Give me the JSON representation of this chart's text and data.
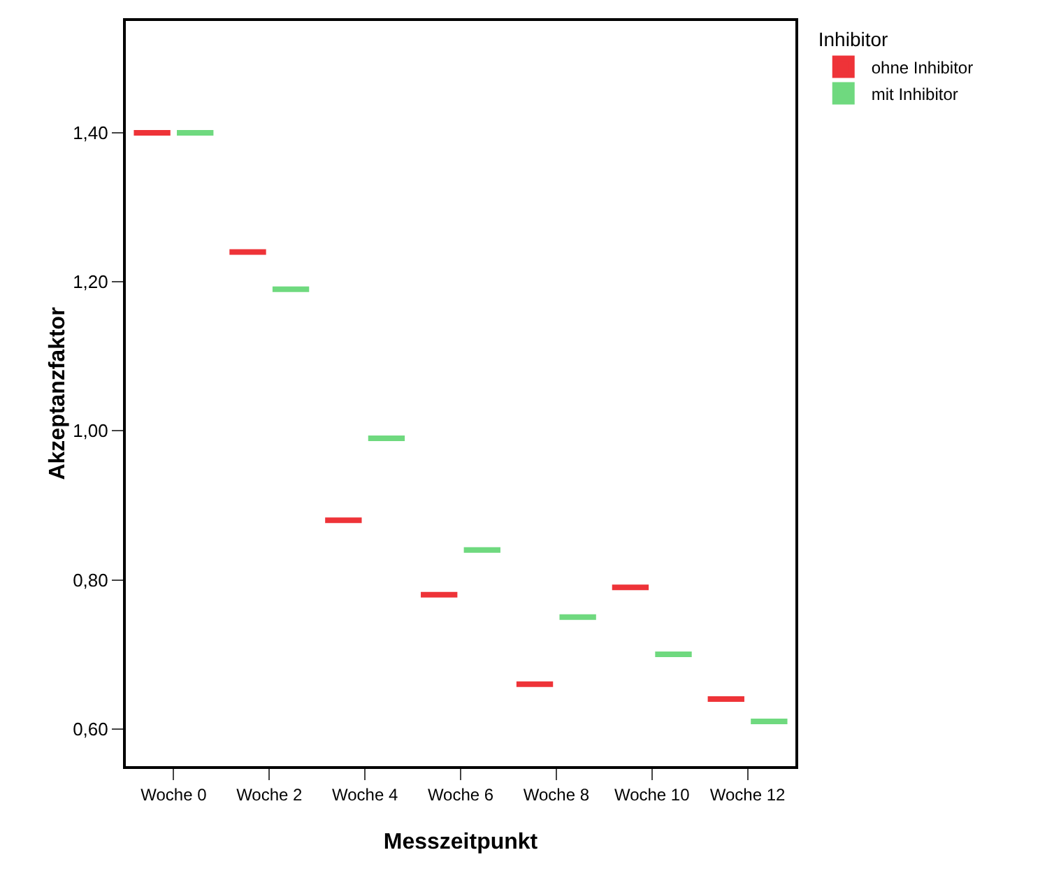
{
  "chart_data": {
    "type": "box",
    "xlabel": "Messzeitpunkt",
    "ylabel": "Akzeptanzfaktor",
    "legend_title": "Inhibitor",
    "categories": [
      "Woche 0",
      "Woche 2",
      "Woche 4",
      "Woche 6",
      "Woche 8",
      "Woche 10",
      "Woche 12"
    ],
    "ylim": [
      0.55,
      1.55
    ],
    "yticks": [
      {
        "value": 0.6,
        "label": "0,60"
      },
      {
        "value": 0.8,
        "label": "0,80"
      },
      {
        "value": 1.0,
        "label": "1,00"
      },
      {
        "value": 1.2,
        "label": "1,20"
      },
      {
        "value": 1.4,
        "label": "1,40"
      }
    ],
    "grid": false,
    "legend": "top right",
    "series": [
      {
        "name": "ohne Inhibitor",
        "color": "#ee3338",
        "boxes": [
          {
            "low": 1.4,
            "q1": 1.4,
            "median": 1.4,
            "q3": 1.4,
            "high": 1.4
          },
          {
            "low": 1.24,
            "q1": 1.24,
            "median": 1.24,
            "q3": 1.24,
            "high": 1.24
          },
          {
            "low": 0.88,
            "q1": 0.88,
            "median": 0.88,
            "q3": 0.88,
            "high": 0.88
          },
          {
            "low": 0.78,
            "q1": 0.78,
            "median": 0.78,
            "q3": 0.78,
            "high": 0.78
          },
          {
            "low": 0.66,
            "q1": 0.66,
            "median": 0.66,
            "q3": 0.66,
            "high": 0.66
          },
          {
            "low": 0.79,
            "q1": 0.79,
            "median": 0.79,
            "q3": 0.79,
            "high": 0.79
          },
          {
            "low": 0.64,
            "q1": 0.64,
            "median": 0.64,
            "q3": 0.64,
            "high": 0.64
          }
        ]
      },
      {
        "name": "mit Inhibitor",
        "color": "#6fd97f",
        "boxes": [
          {
            "low": 1.4,
            "q1": 1.4,
            "median": 1.4,
            "q3": 1.4,
            "high": 1.4
          },
          {
            "low": 1.19,
            "q1": 1.19,
            "median": 1.19,
            "q3": 1.19,
            "high": 1.19
          },
          {
            "low": 0.99,
            "q1": 0.99,
            "median": 0.99,
            "q3": 0.99,
            "high": 0.99
          },
          {
            "low": 0.84,
            "q1": 0.84,
            "median": 0.84,
            "q3": 0.84,
            "high": 0.84
          },
          {
            "low": 0.75,
            "q1": 0.75,
            "median": 0.75,
            "q3": 0.75,
            "high": 0.75
          },
          {
            "low": 0.7,
            "q1": 0.7,
            "median": 0.7,
            "q3": 0.7,
            "high": 0.7
          },
          {
            "low": 0.61,
            "q1": 0.61,
            "median": 0.61,
            "q3": 0.61,
            "high": 0.61
          }
        ]
      }
    ]
  }
}
